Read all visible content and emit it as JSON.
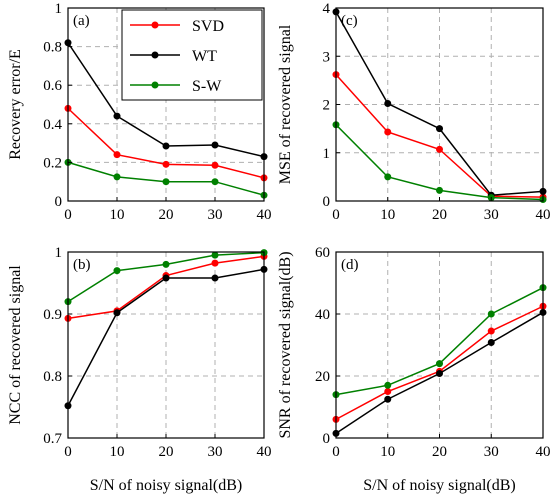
{
  "colors": {
    "SVD": "#ff0000",
    "WT": "#000000",
    "S-W": "#008000"
  },
  "chart_data": [
    {
      "type": "line",
      "panel_label": "(a)",
      "ylabel": "Recovery error/E",
      "xlabel": "",
      "x": [
        0,
        10,
        20,
        30,
        40
      ],
      "xticks": [
        "0",
        "10",
        "20",
        "30",
        "40"
      ],
      "yticks": [
        "0",
        "0.2",
        "0.4",
        "0.6",
        "0.8",
        "1"
      ],
      "ylim": [
        0,
        1
      ],
      "xlim": [
        0,
        40
      ],
      "grid": true,
      "legend": "top-right",
      "series": [
        {
          "name": "SVD",
          "values": [
            0.48,
            0.24,
            0.19,
            0.185,
            0.12
          ]
        },
        {
          "name": "WT",
          "values": [
            0.82,
            0.44,
            0.285,
            0.29,
            0.23
          ]
        },
        {
          "name": "S-W",
          "values": [
            0.2,
            0.125,
            0.1,
            0.1,
            0.03
          ]
        }
      ]
    },
    {
      "type": "line",
      "panel_label": "(c)",
      "ylabel": "MSE of recovered signal",
      "xlabel": "",
      "x": [
        0,
        10,
        20,
        30,
        40
      ],
      "xticks": [
        "0",
        "10",
        "20",
        "30",
        "40"
      ],
      "yticks": [
        "0",
        "1",
        "2",
        "3",
        "4"
      ],
      "ylim": [
        0,
        4
      ],
      "xlim": [
        0,
        40
      ],
      "grid": true,
      "series": [
        {
          "name": "SVD",
          "values": [
            2.62,
            1.43,
            1.07,
            0.1,
            0.08
          ]
        },
        {
          "name": "WT",
          "values": [
            3.92,
            2.02,
            1.5,
            0.12,
            0.2
          ]
        },
        {
          "name": "S-W",
          "values": [
            1.58,
            0.5,
            0.22,
            0.07,
            0.03
          ]
        }
      ]
    },
    {
      "type": "line",
      "panel_label": "(b)",
      "ylabel": "NCC of recovered signal",
      "xlabel": "S/N of noisy signal(dB)",
      "x": [
        0,
        10,
        20,
        30,
        40
      ],
      "xticks": [
        "0",
        "10",
        "20",
        "30",
        "40"
      ],
      "yticks": [
        "0.7",
        "0.8",
        "0.9",
        "1"
      ],
      "ylim": [
        0.7,
        1
      ],
      "xlim": [
        0,
        40
      ],
      "grid": true,
      "series": [
        {
          "name": "SVD",
          "values": [
            0.893,
            0.905,
            0.962,
            0.982,
            0.993
          ]
        },
        {
          "name": "WT",
          "values": [
            0.752,
            0.902,
            0.958,
            0.958,
            0.972
          ]
        },
        {
          "name": "S-W",
          "values": [
            0.92,
            0.97,
            0.98,
            0.995,
            0.999
          ]
        }
      ]
    },
    {
      "type": "line",
      "panel_label": "(d)",
      "ylabel": "SNR of recovered signal(dB)",
      "xlabel": "S/N of noisy signal(dB)",
      "x": [
        0,
        10,
        20,
        30,
        40
      ],
      "xticks": [
        "0",
        "10",
        "20",
        "30",
        "40"
      ],
      "yticks": [
        "0",
        "20",
        "40",
        "60"
      ],
      "ylim": [
        0,
        60
      ],
      "xlim": [
        0,
        40
      ],
      "grid": true,
      "series": [
        {
          "name": "SVD",
          "values": [
            6,
            15,
            21.5,
            34.5,
            42.5
          ]
        },
        {
          "name": "WT",
          "values": [
            1.5,
            12.5,
            20.8,
            30.8,
            40.5
          ]
        },
        {
          "name": "S-W",
          "values": [
            14,
            17,
            24,
            40,
            48.5
          ]
        }
      ]
    }
  ]
}
